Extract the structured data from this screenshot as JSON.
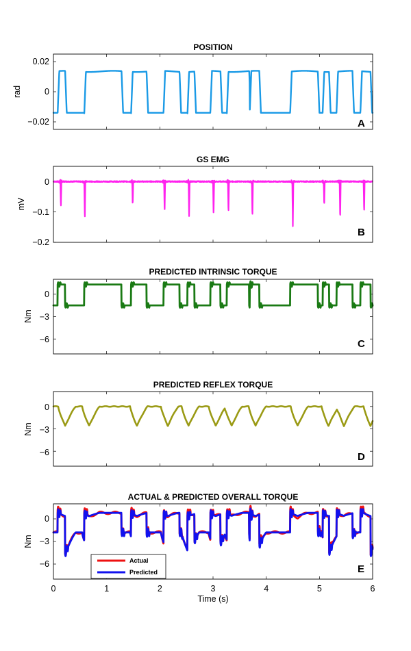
{
  "figure": {
    "xlabel": "Time (s)",
    "x_ticks": [
      "0",
      "1",
      "2",
      "3",
      "4",
      "5",
      "6"
    ],
    "xlim": [
      0,
      6
    ]
  },
  "chart_data": [
    {
      "type": "line",
      "panel": "A",
      "title": "POSITION",
      "ylabel": "rad",
      "ylim": [
        -0.025,
        0.025
      ],
      "y_ticks": [
        0.02,
        0,
        -0.02
      ],
      "y_tick_labels": [
        "0.02",
        "0",
        "−0.02"
      ],
      "color": "#1a9ae6",
      "series": [
        {
          "name": "position",
          "note": "square wave between -0.014 and 0.014 rad",
          "high": 0.0135,
          "low": -0.014,
          "transitions_up": [
            0.08,
            0.58,
            1.46,
            2.07,
            2.52,
            2.95,
            3.26,
            3.69,
            4.45,
            5.06,
            5.32,
            5.77
          ],
          "transitions_down": [
            0.22,
            1.28,
            1.75,
            2.37,
            2.65,
            3.14,
            3.68,
            3.87,
            4.97,
            5.18,
            5.62,
            5.96
          ]
        }
      ]
    },
    {
      "type": "line",
      "panel": "B",
      "title": "GS EMG",
      "ylabel": "mV",
      "ylim": [
        -0.2,
        0.05
      ],
      "y_ticks": [
        0,
        -0.1,
        -0.2
      ],
      "y_tick_labels": [
        "0",
        "−0.1",
        "−0.2"
      ],
      "color": "#ff22ee",
      "series": [
        {
          "name": "emg",
          "spike_times": [
            0.13,
            0.58,
            1.48,
            2.08,
            2.54,
            3.0,
            3.28,
            3.73,
            4.49,
            5.08,
            5.38,
            5.83
          ],
          "spike_depths": [
            -0.085,
            -0.128,
            -0.08,
            -0.103,
            -0.116,
            -0.113,
            -0.105,
            -0.117,
            -0.143,
            -0.082,
            -0.125,
            -0.105
          ]
        }
      ]
    },
    {
      "type": "line",
      "panel": "C",
      "title": "PREDICTED INTRINSIC TORQUE",
      "ylabel": "Nm",
      "ylim": [
        -8,
        2
      ],
      "y_ticks": [
        0,
        -3,
        -6
      ],
      "y_tick_labels": [
        "0",
        "−3",
        "−6"
      ],
      "color": "#1a7a14",
      "series": [
        {
          "name": "intrinsic",
          "high": 1.3,
          "low": -1.5
        }
      ]
    },
    {
      "type": "line",
      "panel": "D",
      "title": "PREDICTED REFLEX TORQUE",
      "ylabel": "Nm",
      "ylim": [
        -8,
        2
      ],
      "y_ticks": [
        0,
        -3,
        -6
      ],
      "y_tick_labels": [
        "0",
        "−3",
        "−6"
      ],
      "color": "#9a9a14",
      "series": [
        {
          "name": "reflex",
          "minima_times": [
            0.22,
            0.67,
            1.57,
            2.15,
            2.54,
            3.05,
            3.35,
            3.8,
            4.59,
            5.17,
            5.46,
            5.96
          ],
          "minima_values": [
            -2.6,
            -2.6,
            -2.6,
            -2.6,
            -2.6,
            -2.6,
            -2.6,
            -2.6,
            -2.6,
            -2.6,
            -2.6,
            -2.6
          ]
        }
      ]
    },
    {
      "type": "line",
      "panel": "E",
      "title": "ACTUAL & PREDICTED OVERALL TORQUE",
      "ylabel": "Nm",
      "xlabel": "Time (s)",
      "ylim": [
        -8,
        2
      ],
      "y_ticks": [
        0,
        -3,
        -6
      ],
      "y_tick_labels": [
        "0",
        "−3",
        "−6"
      ],
      "legend": {
        "position": "lower left",
        "entries": [
          "Actual",
          "Predicted"
        ]
      },
      "series": [
        {
          "name": "Actual",
          "color": "#ee1111",
          "minima_times": [
            0.22,
            0.67,
            1.57,
            2.15,
            2.54,
            3.05,
            3.35,
            3.8,
            4.59,
            5.17,
            5.46,
            5.96
          ],
          "minima_values": [
            -4.6,
            -4.9,
            -4.5,
            -4.9,
            -4.6,
            -4.6,
            -4.5,
            -4.6,
            -5.8,
            -4.6,
            -4.4,
            -4.6
          ]
        },
        {
          "name": "Predicted",
          "color": "#1111ee",
          "minima_times": [
            0.22,
            0.67,
            1.57,
            2.15,
            2.54,
            3.05,
            3.35,
            3.8,
            4.59,
            5.17,
            5.46,
            5.96
          ],
          "minima_values": [
            -4.6,
            -4.7,
            -4.5,
            -4.6,
            -4.6,
            -4.6,
            -4.4,
            -4.6,
            -4.5,
            -4.6,
            -4.4,
            -4.6
          ]
        }
      ]
    }
  ],
  "panels": {
    "A": {
      "title": "POSITION",
      "ylabel": "rad",
      "letter": "A",
      "ticks": [
        "0.02",
        "0",
        "−0.02"
      ]
    },
    "B": {
      "title": "GS EMG",
      "ylabel": "mV",
      "letter": "B",
      "ticks": [
        "0",
        "−0.1",
        "−0.2"
      ]
    },
    "C": {
      "title": "PREDICTED INTRINSIC TORQUE",
      "ylabel": "Nm",
      "letter": "C",
      "ticks": [
        "0",
        "−3",
        "−6"
      ]
    },
    "D": {
      "title": "PREDICTED REFLEX TORQUE",
      "ylabel": "Nm",
      "letter": "D",
      "ticks": [
        "0",
        "−3",
        "−6"
      ]
    },
    "E": {
      "title": "ACTUAL & PREDICTED OVERALL TORQUE",
      "ylabel": "Nm",
      "letter": "E",
      "ticks": [
        "0",
        "−3",
        "−6"
      ],
      "legend": {
        "actual": "Actual",
        "predicted": "Predicted"
      }
    }
  }
}
